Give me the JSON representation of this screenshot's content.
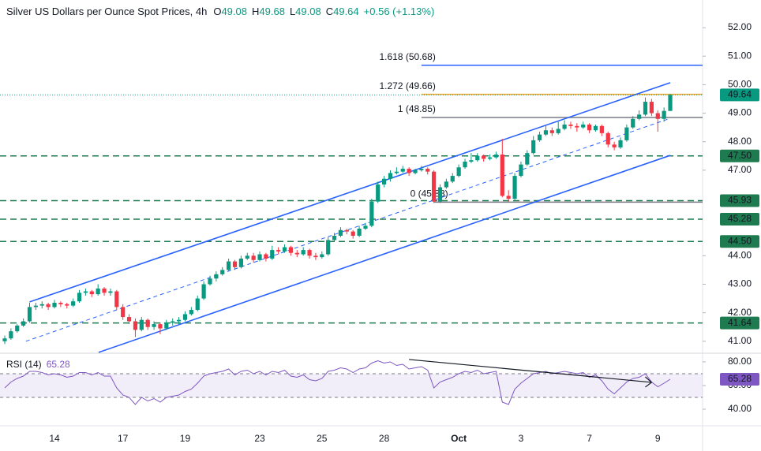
{
  "chart_data": {
    "type": "candlestick",
    "title": "Silver US Dollars per Ounce Spot Prices, 4h",
    "header_keys": [
      "O",
      "H",
      "L",
      "C"
    ],
    "change": "+0.56 (+1.13%)",
    "categories": [
      null,
      null,
      null,
      null,
      null,
      null,
      null,
      null,
      "14",
      null,
      null,
      null,
      null,
      null,
      null,
      null,
      null,
      null,
      null,
      "17",
      null,
      null,
      null,
      null,
      null,
      null,
      null,
      null,
      null,
      "19",
      null,
      null,
      null,
      null,
      null,
      null,
      null,
      null,
      null,
      null,
      null,
      "23",
      null,
      null,
      null,
      null,
      null,
      null,
      null,
      null,
      null,
      "25",
      null,
      null,
      null,
      null,
      null,
      null,
      null,
      null,
      null,
      "28",
      null,
      null,
      null,
      null,
      null,
      null,
      null,
      null,
      null,
      null,
      null,
      "Oct",
      null,
      null,
      null,
      null,
      null,
      null,
      null,
      null,
      null,
      "3",
      null,
      null,
      null,
      null,
      null,
      null,
      null,
      null,
      null,
      null,
      "7",
      null,
      null,
      null,
      null,
      null,
      null,
      null,
      null,
      null,
      null,
      "9",
      null,
      null
    ],
    "xlim": [
      -0.76,
      112.2
    ],
    "ylim": [
      40.58,
      52.97
    ],
    "yticks": [
      {
        "value": 41,
        "label": "41.00"
      },
      {
        "value": 42,
        "label": "42.00"
      },
      {
        "value": 43,
        "label": "43.00"
      },
      {
        "value": 44,
        "label": "44.00"
      },
      {
        "value": 47,
        "label": "47.00"
      },
      {
        "value": 48,
        "label": "48.00"
      },
      {
        "value": 49,
        "label": "49.00"
      },
      {
        "value": 50,
        "label": "50.00"
      },
      {
        "value": 51,
        "label": "51.00"
      },
      {
        "value": 52,
        "label": "52.00"
      }
    ],
    "series": [
      {
        "up_color": "#089981",
        "down_color": "#f23645",
        "ohlc": [
          [
            41.0,
            41.2,
            40.9,
            41.1
          ],
          [
            41.1,
            41.45,
            41.05,
            41.35
          ],
          [
            41.35,
            41.6,
            41.3,
            41.55
          ],
          [
            41.55,
            41.8,
            41.5,
            41.7
          ],
          [
            41.7,
            42.35,
            41.65,
            42.2
          ],
          [
            42.2,
            42.35,
            42.1,
            42.25
          ],
          [
            42.25,
            42.4,
            42.15,
            42.3
          ],
          [
            42.3,
            42.35,
            42.1,
            42.2
          ],
          [
            42.2,
            42.45,
            42.15,
            42.35
          ],
          [
            42.35,
            42.4,
            42.2,
            42.3
          ],
          [
            42.3,
            42.35,
            42.15,
            42.25
          ],
          [
            42.25,
            42.5,
            42.2,
            42.4
          ],
          [
            42.4,
            42.8,
            42.35,
            42.7
          ],
          [
            42.7,
            42.85,
            42.6,
            42.75
          ],
          [
            42.75,
            42.8,
            42.55,
            42.65
          ],
          [
            42.65,
            43.0,
            42.6,
            42.85
          ],
          [
            42.85,
            42.9,
            42.6,
            42.7
          ],
          [
            42.7,
            42.85,
            42.6,
            42.75
          ],
          [
            42.75,
            42.8,
            42.1,
            42.2
          ],
          [
            42.2,
            42.3,
            41.75,
            41.85
          ],
          [
            41.85,
            41.95,
            41.6,
            41.7
          ],
          [
            41.7,
            41.8,
            41.15,
            41.4
          ],
          [
            41.4,
            41.85,
            41.35,
            41.75
          ],
          [
            41.75,
            41.8,
            41.4,
            41.5
          ],
          [
            41.5,
            41.7,
            41.4,
            41.6
          ],
          [
            41.6,
            41.65,
            41.25,
            41.45
          ],
          [
            41.45,
            41.75,
            41.4,
            41.65
          ],
          [
            41.65,
            41.8,
            41.55,
            41.7
          ],
          [
            41.7,
            41.85,
            41.6,
            41.75
          ],
          [
            41.75,
            42.05,
            41.7,
            41.95
          ],
          [
            41.95,
            42.2,
            41.9,
            42.1
          ],
          [
            42.1,
            42.6,
            42.05,
            42.5
          ],
          [
            42.5,
            43.1,
            42.45,
            43.0
          ],
          [
            43.0,
            43.3,
            42.95,
            43.2
          ],
          [
            43.2,
            43.45,
            43.1,
            43.35
          ],
          [
            43.35,
            43.6,
            43.3,
            43.5
          ],
          [
            43.5,
            43.9,
            43.45,
            43.8
          ],
          [
            43.8,
            43.85,
            43.5,
            43.6
          ],
          [
            43.6,
            44.0,
            43.55,
            43.9
          ],
          [
            43.9,
            44.1,
            43.85,
            44.0
          ],
          [
            44.0,
            44.1,
            43.75,
            43.85
          ],
          [
            43.85,
            44.15,
            43.8,
            44.05
          ],
          [
            44.05,
            44.1,
            43.8,
            43.9
          ],
          [
            43.9,
            44.35,
            43.85,
            44.2
          ],
          [
            44.2,
            44.3,
            44.05,
            44.15
          ],
          [
            44.15,
            44.4,
            44.1,
            44.3
          ],
          [
            44.3,
            44.35,
            44.0,
            44.1
          ],
          [
            44.1,
            44.2,
            43.95,
            44.05
          ],
          [
            44.05,
            44.3,
            44.0,
            44.2
          ],
          [
            44.2,
            44.25,
            43.9,
            44.0
          ],
          [
            44.0,
            44.1,
            43.85,
            43.95
          ],
          [
            43.95,
            44.15,
            43.9,
            44.05
          ],
          [
            44.05,
            44.65,
            44.0,
            44.55
          ],
          [
            44.55,
            44.8,
            44.5,
            44.7
          ],
          [
            44.7,
            45.0,
            44.65,
            44.9
          ],
          [
            44.9,
            44.95,
            44.75,
            44.85
          ],
          [
            44.85,
            44.9,
            44.6,
            44.7
          ],
          [
            44.7,
            45.05,
            44.65,
            44.95
          ],
          [
            44.95,
            45.15,
            44.9,
            45.05
          ],
          [
            45.05,
            46.0,
            45.0,
            45.9
          ],
          [
            45.9,
            46.6,
            45.85,
            46.5
          ],
          [
            46.5,
            46.8,
            46.4,
            46.7
          ],
          [
            46.7,
            47.0,
            46.6,
            46.9
          ],
          [
            46.9,
            47.1,
            46.85,
            46.95
          ],
          [
            46.95,
            47.15,
            46.9,
            47.05
          ],
          [
            47.05,
            47.1,
            46.8,
            46.9
          ],
          [
            46.9,
            47.05,
            46.85,
            47.0
          ],
          [
            47.0,
            47.15,
            46.95,
            47.05
          ],
          [
            47.05,
            47.1,
            46.85,
            46.95
          ],
          [
            46.95,
            47.0,
            45.85,
            45.9
          ],
          [
            45.9,
            46.5,
            45.85,
            46.4
          ],
          [
            46.4,
            46.7,
            46.35,
            46.6
          ],
          [
            46.6,
            46.9,
            46.55,
            46.8
          ],
          [
            46.8,
            47.2,
            46.75,
            47.1
          ],
          [
            47.1,
            47.4,
            47.05,
            47.3
          ],
          [
            47.3,
            47.6,
            47.25,
            47.35
          ],
          [
            47.35,
            47.6,
            47.3,
            47.5
          ],
          [
            47.5,
            47.55,
            47.3,
            47.4
          ],
          [
            47.4,
            47.55,
            47.35,
            47.45
          ],
          [
            47.45,
            47.65,
            47.4,
            47.55
          ],
          [
            47.55,
            48.1,
            46.05,
            46.1
          ],
          [
            46.1,
            46.3,
            45.9,
            46.0
          ],
          [
            46.0,
            46.9,
            45.95,
            46.8
          ],
          [
            46.8,
            47.3,
            46.75,
            47.2
          ],
          [
            47.2,
            47.7,
            47.15,
            47.6
          ],
          [
            47.6,
            48.2,
            47.55,
            48.05
          ],
          [
            48.05,
            48.35,
            48.0,
            48.25
          ],
          [
            48.25,
            48.55,
            48.2,
            48.4
          ],
          [
            48.4,
            48.5,
            48.2,
            48.3
          ],
          [
            48.3,
            48.7,
            48.25,
            48.45
          ],
          [
            48.45,
            48.75,
            48.4,
            48.6
          ],
          [
            48.6,
            48.7,
            48.45,
            48.55
          ],
          [
            48.55,
            48.65,
            48.35,
            48.5
          ],
          [
            48.5,
            48.7,
            48.45,
            48.6
          ],
          [
            48.6,
            48.65,
            48.3,
            48.4
          ],
          [
            48.4,
            48.6,
            48.35,
            48.55
          ],
          [
            48.55,
            48.6,
            48.2,
            48.3
          ],
          [
            48.3,
            48.35,
            47.8,
            47.9
          ],
          [
            47.9,
            48.0,
            47.7,
            47.8
          ],
          [
            47.8,
            48.15,
            47.75,
            48.05
          ],
          [
            48.05,
            48.6,
            48.0,
            48.5
          ],
          [
            48.5,
            48.9,
            48.45,
            48.8
          ],
          [
            48.8,
            49.1,
            48.75,
            48.95
          ],
          [
            48.95,
            49.55,
            48.9,
            49.4
          ],
          [
            49.4,
            49.5,
            48.9,
            49.0
          ],
          [
            49.0,
            49.1,
            48.35,
            48.8
          ],
          [
            48.8,
            49.2,
            48.7,
            49.08
          ],
          [
            49.08,
            49.68,
            49.08,
            49.64
          ]
        ]
      }
    ],
    "fib_levels": [
      {
        "label": "1.618 (50.68)",
        "value": 50.68,
        "color": "#2962ff",
        "x": [
          67,
          112.2
        ]
      },
      {
        "label": "1.272 (49.66)",
        "value": 49.66,
        "color": "#f5a623",
        "x": [
          67,
          112.2
        ]
      },
      {
        "label": "1 (48.85)",
        "value": 48.85,
        "color": "#787b86",
        "x": [
          67,
          112.2
        ]
      },
      {
        "label": "0 (45.88)",
        "value": 45.88,
        "color": "#787b86",
        "x": [
          69,
          112.2
        ]
      }
    ],
    "levels": {
      "color": "#1e7a4f",
      "items": [
        {
          "value": 47.5,
          "label": "47.50"
        },
        {
          "value": 45.93,
          "label": "45.93"
        },
        {
          "value": 45.28,
          "label": "45.28"
        },
        {
          "value": 44.5,
          "label": "44.50"
        },
        {
          "value": 41.64,
          "label": "41.64"
        }
      ]
    },
    "channel": {
      "color": "#2962ff",
      "lines": [
        {
          "x": [
            4,
            107
          ],
          "y": [
            42.38,
            50.07
          ],
          "dashed": false
        },
        {
          "x": [
            15.1,
            107
          ],
          "y": [
            40.61,
            47.52
          ],
          "dashed": false
        },
        {
          "x": [
            3.4,
            107
          ],
          "y": [
            41.0,
            48.82
          ],
          "dashed": true
        }
      ]
    },
    "rsi": {
      "title": "RSI (14)",
      "color": "#7e57c2",
      "ylim": [
        26,
        87.3
      ],
      "yticks": [
        {
          "value": 80,
          "label": "80.00"
        },
        {
          "value": 60,
          "label": "60.00"
        },
        {
          "value": 40,
          "label": "40.00"
        }
      ],
      "band": [
        50,
        70
      ],
      "trendline": {
        "x": [
          65,
          104
        ],
        "y": [
          82,
          62.7
        ],
        "color": "#131722"
      },
      "values": [
        58,
        63,
        66,
        68,
        72,
        72,
        71,
        69,
        70,
        69,
        67,
        68,
        71,
        71,
        69,
        71,
        68,
        68,
        58,
        52,
        50,
        44,
        50,
        47,
        49,
        46,
        50,
        51,
        52,
        55,
        57,
        62,
        68,
        70,
        71,
        72,
        74,
        69,
        72,
        73,
        70,
        72,
        69,
        72,
        71,
        73,
        68,
        67,
        69,
        65,
        64,
        66,
        72,
        73,
        75,
        74,
        71,
        74,
        75,
        79,
        81,
        79,
        80,
        77,
        78,
        74,
        75,
        76,
        73,
        58,
        63,
        65,
        67,
        70,
        72,
        71,
        73,
        70,
        71,
        72,
        46,
        44,
        57,
        62,
        66,
        70,
        71,
        72,
        70,
        71,
        72,
        71,
        70,
        71,
        67,
        69,
        64,
        57,
        53,
        58,
        63,
        66,
        67,
        70,
        63,
        59,
        62,
        65.28
      ]
    }
  }
}
